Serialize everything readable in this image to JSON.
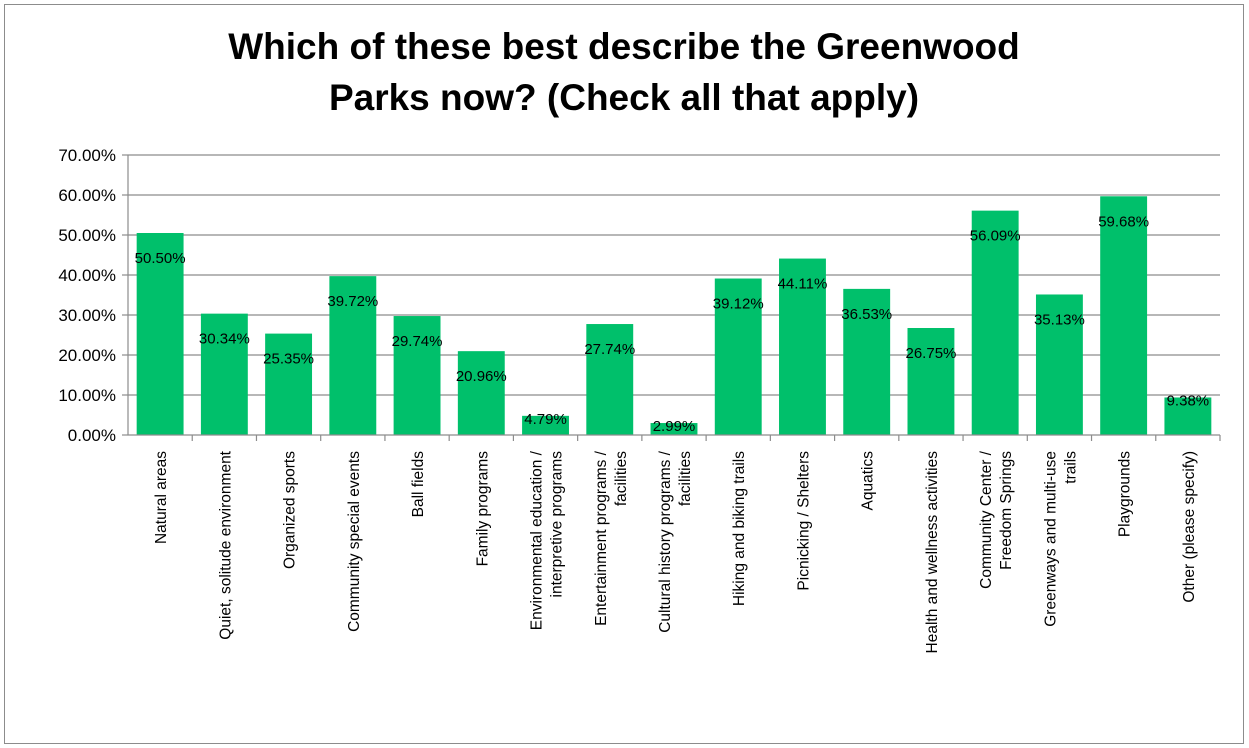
{
  "chart_data": {
    "type": "bar",
    "title_lines": [
      "Which of these best describe the Greenwood",
      "Parks now? (Check all that apply)"
    ],
    "categories": [
      [
        "Natural areas"
      ],
      [
        "Quiet, solitude environment"
      ],
      [
        "Organized sports"
      ],
      [
        "Community special events"
      ],
      [
        "Ball fields"
      ],
      [
        "Family programs"
      ],
      [
        "Environmental education /",
        "interpretive programs"
      ],
      [
        "Entertainment programs /",
        "facilities"
      ],
      [
        "Cultural history programs /",
        "facilities"
      ],
      [
        "Hiking and biking trails"
      ],
      [
        "Picnicking / Shelters"
      ],
      [
        "Aquatics"
      ],
      [
        "Health and wellness activities"
      ],
      [
        "Community Center /",
        "Freedom Springs"
      ],
      [
        "Greenways and multi-use",
        "trails"
      ],
      [
        "Playgrounds"
      ],
      [
        "Other (please specify)"
      ]
    ],
    "values": [
      50.5,
      30.34,
      25.35,
      39.72,
      29.74,
      20.96,
      4.79,
      27.74,
      2.99,
      39.12,
      44.11,
      36.53,
      26.75,
      56.09,
      35.13,
      59.68,
      9.38
    ],
    "data_labels": [
      "50.50%",
      "30.34%",
      "25.35%",
      "39.72%",
      "29.74%",
      "20.96%",
      "4.79%",
      "27.74%",
      "2.99%",
      "39.12%",
      "44.11%",
      "36.53%",
      "26.75%",
      "56.09%",
      "35.13%",
      "59.68%",
      "9.38%"
    ],
    "y_ticks": [
      "0.00%",
      "10.00%",
      "20.00%",
      "30.00%",
      "40.00%",
      "50.00%",
      "60.00%",
      "70.00%"
    ],
    "ylim": [
      0,
      70
    ],
    "grid": true,
    "legend": "none",
    "bar_color": "#00c06b",
    "grid_color": "#8c8c8c",
    "xlabel": "",
    "ylabel": ""
  }
}
